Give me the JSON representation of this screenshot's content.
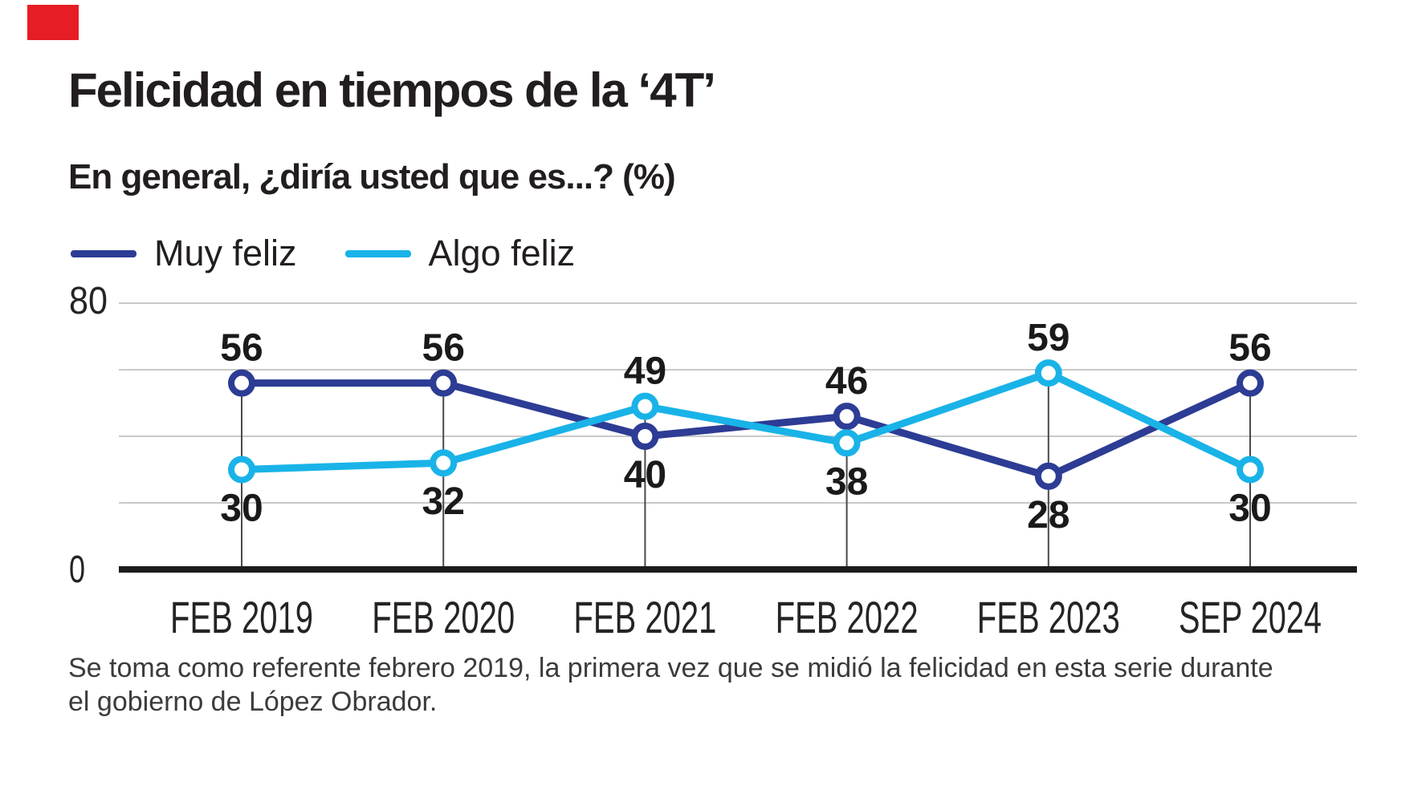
{
  "colors": {
    "brand_red": "#e71d25",
    "muy_feliz_blue": "#2d3c94",
    "algo_feliz_cyan": "#19b3e8",
    "gridline_gray": "#c9c9c9",
    "axis_black": "#1c1c1c",
    "dropline_gray": "#4a4a4a",
    "label_black": "#1a1a1a"
  },
  "header": {
    "title": "Felicidad en tiempos de la ‘4T’",
    "subtitle": "En general, ¿diría usted que es...? (%)"
  },
  "legend": [
    {
      "label": "Muy feliz",
      "color": "#2d3c94"
    },
    {
      "label": "Algo feliz",
      "color": "#19b3e8"
    }
  ],
  "axis": {
    "y_top_label": "80",
    "y_bottom_label": "0"
  },
  "chart_data": {
    "type": "line",
    "title": "Felicidad en tiempos de la ‘4T’",
    "subtitle": "En general, ¿diría usted que es...? (%)",
    "categories": [
      "FEB 2019",
      "FEB 2020",
      "FEB 2021",
      "FEB 2022",
      "FEB 2023",
      "SEP 2024"
    ],
    "series": [
      {
        "name": "Muy feliz",
        "color": "#2d3c94",
        "values": [
          56,
          56,
          40,
          46,
          28,
          56
        ]
      },
      {
        "name": "Algo feliz",
        "color": "#19b3e8",
        "values": [
          30,
          32,
          49,
          38,
          59,
          30
        ]
      }
    ],
    "ylim": [
      0,
      80
    ],
    "yticks_labeled": [
      0,
      80
    ],
    "gridline_values": [
      20,
      40,
      60,
      80
    ],
    "grid": true,
    "legend_position": "top-left",
    "data_labels": true,
    "xlabel": "",
    "ylabel": ""
  },
  "footnote": {
    "line1": "Se toma como referente febrero 2019, la primera vez que se midió la felicidad en esta serie durante",
    "line2": "el gobierno de López Obrador."
  }
}
